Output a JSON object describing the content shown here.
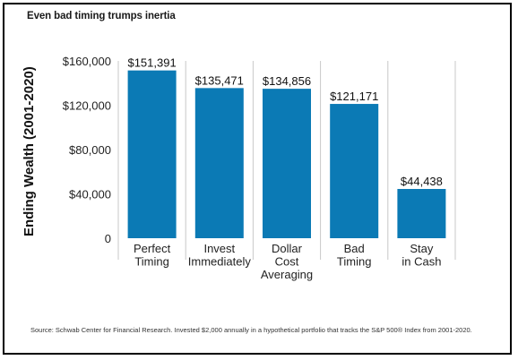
{
  "title": "Even bad timing trumps inertia",
  "source": "Source: Schwab Center for Financial Research. Invested $2,000 annually in a hypothetical portfolio that tracks the S&P 500® Index from 2001-2020.",
  "colors": {
    "bar": "#0b7ab5",
    "grid": "#c8c8c8"
  },
  "chart_data": {
    "type": "bar",
    "title": "",
    "xlabel": "",
    "ylabel": "Ending Wealth (2001-2020)",
    "ylim": [
      0,
      160000
    ],
    "yticks": [
      0,
      40000,
      80000,
      120000,
      160000
    ],
    "ytick_labels": [
      "0",
      "$40,000",
      "$80,000",
      "$120,000",
      "$160,000"
    ],
    "categories": [
      "Perfect Timing",
      "Invest Immediately",
      "Dollar Cost Averaging",
      "Bad Timing",
      "Stay in Cash"
    ],
    "category_lines": [
      [
        "Perfect",
        "Timing"
      ],
      [
        "Invest",
        "Immediately"
      ],
      [
        "Dollar",
        "Cost",
        "Averaging"
      ],
      [
        "Bad",
        "Timing"
      ],
      [
        "Stay",
        "in Cash"
      ]
    ],
    "values": [
      151391,
      135471,
      134856,
      121171,
      44438
    ],
    "value_labels": [
      "$151,391",
      "$135,471",
      "$134,856",
      "$121,171",
      "$44,438"
    ],
    "grid": "vertical separators",
    "legend": "none"
  }
}
